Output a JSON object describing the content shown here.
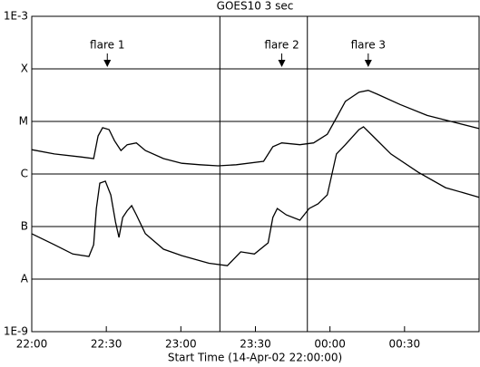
{
  "chart_data": {
    "type": "line",
    "title": "GOES10 3 sec",
    "xlabel": "Start Time (14-Apr-02 22:00:00)",
    "log_y": true,
    "grid": true,
    "color": "#000000",
    "ylim": [
      1e-09,
      0.001
    ],
    "yticks": [
      {
        "value": 1e-09,
        "label": "1E-9"
      },
      {
        "value": 1e-08,
        "label": "A"
      },
      {
        "value": 1e-07,
        "label": "B"
      },
      {
        "value": 1e-06,
        "label": "C"
      },
      {
        "value": 1e-05,
        "label": "M"
      },
      {
        "value": 0.0001,
        "label": "X"
      },
      {
        "value": 0.001,
        "label": "1E-3"
      }
    ],
    "xlim": [
      0,
      180
    ],
    "xticks": [
      {
        "value": 0,
        "label": "22:00"
      },
      {
        "value": 30,
        "label": "22:30"
      },
      {
        "value": 60,
        "label": "23:00"
      },
      {
        "value": 90,
        "label": "23:30"
      },
      {
        "value": 120,
        "label": "00:00"
      },
      {
        "value": 150,
        "label": "00:30"
      }
    ],
    "vlines": [
      75.7,
      110.9
    ],
    "annotations": [
      {
        "text": "flare 1",
        "x": 30.4
      },
      {
        "text": "flare 2",
        "x": 100.6
      },
      {
        "text": "flare 3",
        "x": 135.4
      }
    ],
    "series": [
      {
        "x": [
          0,
          9.1,
          20.1,
          24.9,
          26.7,
          28.5,
          31.1,
          33.3,
          35.9,
          38.4,
          42.1,
          45.7,
          53,
          60.4,
          67.7,
          75,
          82.3,
          93.3,
          97,
          100.6,
          107.9,
          113.4,
          118.9,
          122.6,
          126.2,
          131.7,
          135.4,
          139,
          148.2,
          159.1,
          170.1,
          180
        ],
        "values": [
          2.9e-06,
          2.4e-06,
          2.1e-06,
          1.96e-06,
          5.3e-06,
          7.6e-06,
          7e-06,
          4.3e-06,
          2.8e-06,
          3.6e-06,
          3.9e-06,
          2.8e-06,
          1.96e-06,
          1.6e-06,
          1.5e-06,
          1.43e-06,
          1.5e-06,
          1.74e-06,
          3.3e-06,
          3.9e-06,
          3.6e-06,
          3.9e-06,
          5.7e-06,
          1.17e-05,
          2.4e-05,
          3.6e-05,
          3.9e-05,
          3.3e-05,
          2.1e-05,
          1.3e-05,
          9.6e-06,
          7.3e-06
        ]
      },
      {
        "x": [
          0,
          9.1,
          16.5,
          23,
          24.9,
          26,
          27.4,
          29.6,
          31.8,
          33.7,
          35.1,
          36.6,
          38.4,
          40.2,
          42.1,
          45.7,
          53,
          60.4,
          71.3,
          78.7,
          84.1,
          89.6,
          95.1,
          97,
          98.8,
          102.4,
          107.9,
          111.6,
          115.2,
          118.9,
          122.6,
          126.2,
          131.7,
          133.5,
          137.2,
          144.5,
          155.5,
          166.5,
          180
        ],
        "values": [
          7.3e-08,
          4.5e-08,
          3e-08,
          2.7e-08,
          4.5e-08,
          2.2e-07,
          6.7e-07,
          7.3e-07,
          4e-07,
          1.22e-07,
          6.2e-08,
          1.49e-07,
          2e-07,
          2.5e-07,
          1.67e-07,
          7.3e-08,
          3.7e-08,
          2.8e-08,
          2e-08,
          1.8e-08,
          3.3e-08,
          3e-08,
          4.9e-08,
          1.49e-07,
          2.2e-07,
          1.67e-07,
          1.32e-07,
          2.2e-07,
          2.7e-07,
          4e-07,
          2.4e-06,
          3.6e-06,
          7e-06,
          7.9e-06,
          5.3e-06,
          2.4e-06,
          1.08e-06,
          5.5e-07,
          3.6e-07
        ]
      }
    ]
  }
}
